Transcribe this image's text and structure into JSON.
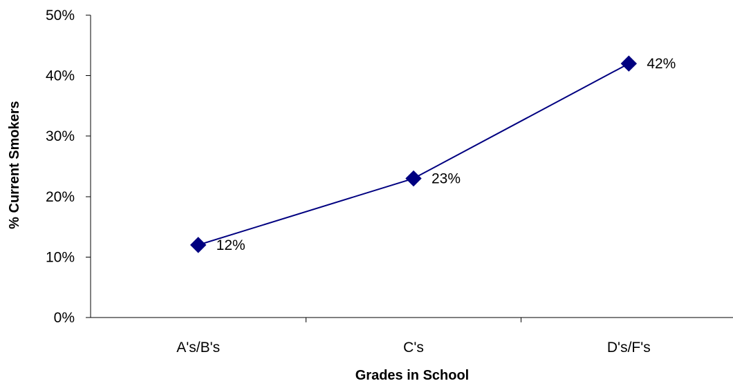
{
  "chart_data": {
    "type": "line",
    "categories": [
      "A's/B's",
      "C's",
      "D's/F's"
    ],
    "values": [
      12,
      23,
      42
    ],
    "data_labels": [
      "12%",
      "23%",
      "42%"
    ],
    "xlabel": "Grades in School",
    "ylabel": "% Current Smokers",
    "ylim": [
      0,
      50
    ],
    "yticks": [
      0,
      10,
      20,
      30,
      40,
      50
    ],
    "ytick_labels": [
      "0%",
      "10%",
      "20%",
      "30%",
      "40%",
      "50%"
    ],
    "grid": false,
    "legend": "none",
    "marker": "diamond",
    "line_color": "#000080",
    "marker_color": "#000080"
  }
}
